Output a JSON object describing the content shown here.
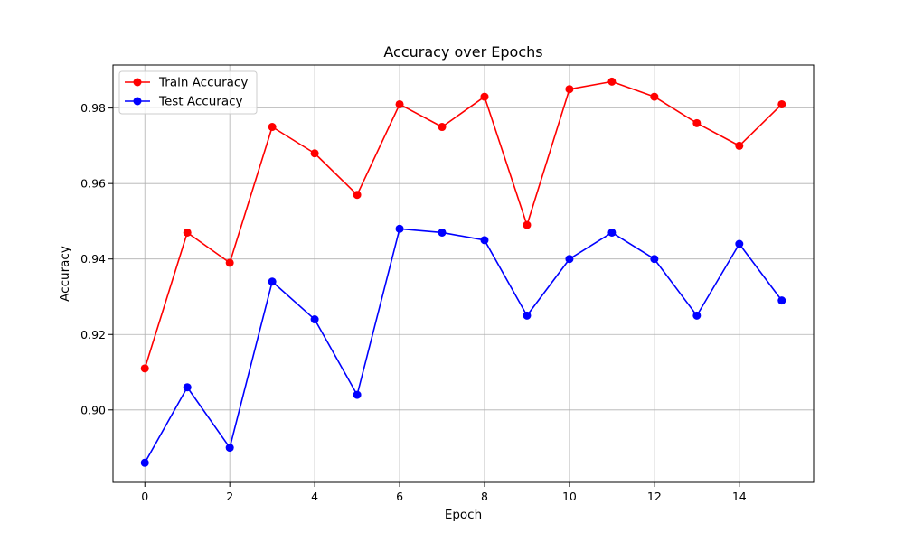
{
  "chart_data": {
    "type": "line",
    "title": "Accuracy over Epochs",
    "xlabel": "Epoch",
    "ylabel": "Accuracy",
    "x": [
      0,
      1,
      2,
      3,
      4,
      5,
      6,
      7,
      8,
      9,
      10,
      11,
      12,
      13,
      14,
      15
    ],
    "xlim": [
      -0.75,
      15.75
    ],
    "ylim": [
      0.8808,
      0.9914
    ],
    "xticks": [
      "0",
      "2",
      "4",
      "6",
      "8",
      "10",
      "12",
      "14"
    ],
    "yticks": [
      "0.90",
      "0.92",
      "0.94",
      "0.96",
      "0.98"
    ],
    "grid": true,
    "legend_position": "top-left",
    "series": [
      {
        "name": "Train Accuracy",
        "color": "#ff0000",
        "marker": "circle",
        "values": [
          0.911,
          0.947,
          0.939,
          0.975,
          0.968,
          0.957,
          0.981,
          0.975,
          0.983,
          0.949,
          0.985,
          0.987,
          0.983,
          0.976,
          0.97,
          0.981
        ]
      },
      {
        "name": "Test Accuracy",
        "color": "#0000ff",
        "marker": "circle",
        "values": [
          0.886,
          0.906,
          0.89,
          0.934,
          0.924,
          0.904,
          0.948,
          0.947,
          0.945,
          0.925,
          0.94,
          0.947,
          0.94,
          0.925,
          0.944,
          0.929
        ]
      }
    ]
  }
}
